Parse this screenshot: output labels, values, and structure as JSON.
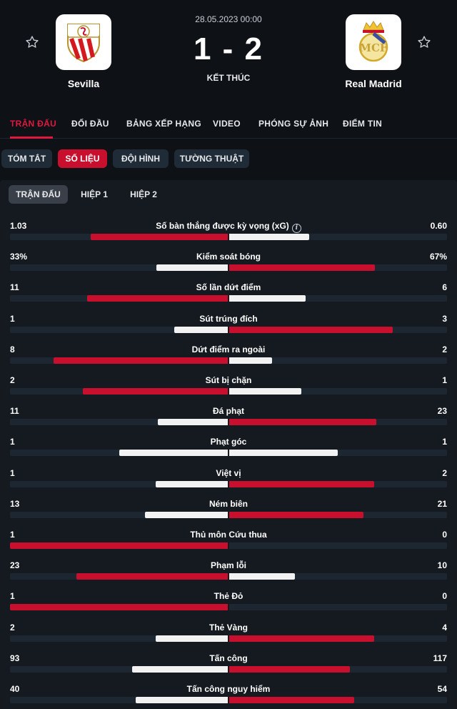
{
  "match": {
    "date": "28.05.2023 00:00",
    "score": "1 - 2",
    "status": "KẾT THÚC",
    "home": {
      "name": "Sevilla"
    },
    "away": {
      "name": "Real Madrid"
    }
  },
  "colors": {
    "accent": "#c8102e",
    "background": "#0e1217",
    "panel": "#141a20",
    "track": "#1d2731"
  },
  "icons": {
    "favorite": "star-outline-icon",
    "info": "info-icon"
  },
  "nav": {
    "tabs": [
      {
        "label": "TRẬN ĐẤU",
        "active": true
      },
      {
        "label": "ĐỐI ĐẦU"
      },
      {
        "label": "BẢNG XẾP HẠNG"
      },
      {
        "label": "VIDEO"
      },
      {
        "label": "PHÓNG SỰ ẢNH"
      },
      {
        "label": "ĐIỂM TIN"
      }
    ]
  },
  "subtabs": [
    {
      "label": "TÓM TẮT"
    },
    {
      "label": "SỐ LIỆU",
      "active": true
    },
    {
      "label": "ĐỘI HÌNH"
    },
    {
      "label": "TƯỜNG THUẬT"
    }
  ],
  "periods": [
    {
      "label": "TRẬN ĐẤU",
      "active": true
    },
    {
      "label": "HIỆP 1"
    },
    {
      "label": "HIỆP 2"
    }
  ],
  "stats": [
    {
      "label": "Số bàn thắng được kỳ vọng (xG)",
      "home": "1.03",
      "away": "0.60",
      "info": true
    },
    {
      "label": "Kiểm soát bóng",
      "home": "33%",
      "away": "67%"
    },
    {
      "label": "Số lần dứt điểm",
      "home": "11",
      "away": "6"
    },
    {
      "label": "Sút trúng đích",
      "home": "1",
      "away": "3"
    },
    {
      "label": "Dứt điểm ra ngoài",
      "home": "8",
      "away": "2"
    },
    {
      "label": "Sút bị chặn",
      "home": "2",
      "away": "1"
    },
    {
      "label": "Đá phạt",
      "home": "11",
      "away": "23"
    },
    {
      "label": "Phạt góc",
      "home": "1",
      "away": "1"
    },
    {
      "label": "Việt vị",
      "home": "1",
      "away": "2"
    },
    {
      "label": "Ném biên",
      "home": "13",
      "away": "21"
    },
    {
      "label": "Thủ môn Cứu thua",
      "home": "1",
      "away": "0"
    },
    {
      "label": "Phạm lỗi",
      "home": "23",
      "away": "10"
    },
    {
      "label": "Thẻ Đỏ",
      "home": "1",
      "away": "0"
    },
    {
      "label": "Thẻ Vàng",
      "home": "2",
      "away": "4"
    },
    {
      "label": "Tấn công",
      "home": "93",
      "away": "117"
    },
    {
      "label": "Tấn công nguy hiểm",
      "home": "40",
      "away": "54"
    }
  ]
}
